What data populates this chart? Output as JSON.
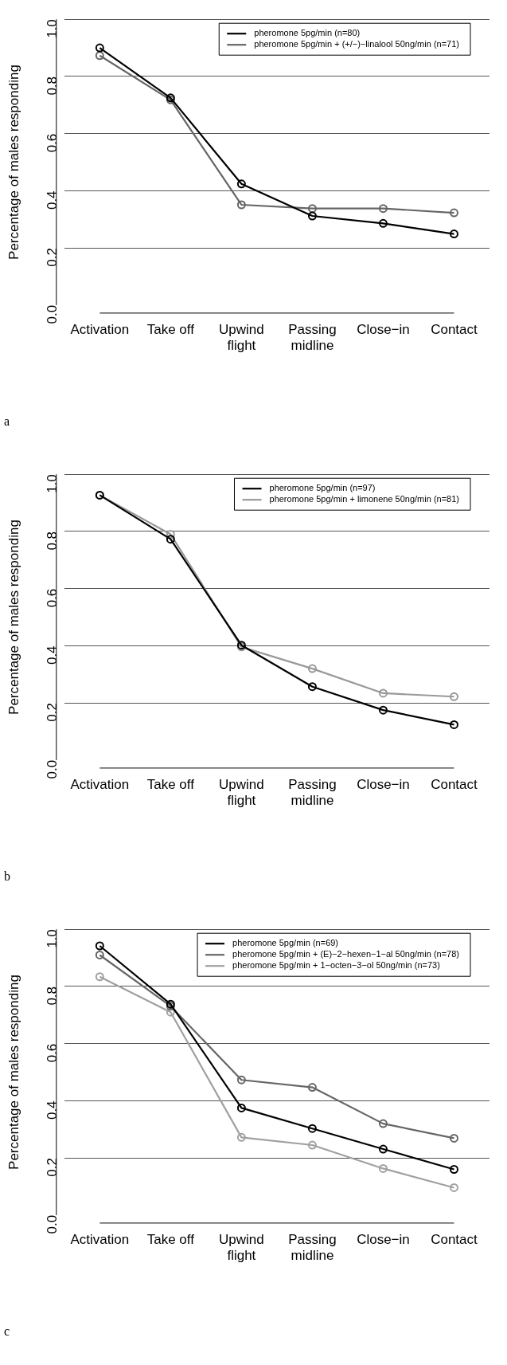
{
  "chart_data": [
    {
      "type": "line",
      "categories": [
        "Activation",
        "Take off",
        "Upwind\nflight",
        "Passing\nmidline",
        "Close−in",
        "Contact"
      ],
      "ylabel": "Percentage of males responding",
      "ylim": [
        0,
        1
      ],
      "yticks": [
        {
          "value": 0,
          "label": "0.0"
        },
        {
          "value": 0.2,
          "label": "0.2"
        },
        {
          "value": 0.4,
          "label": "0.4"
        },
        {
          "value": 0.6,
          "label": "0.6"
        },
        {
          "value": 0.8,
          "label": "0.8"
        },
        {
          "value": 1,
          "label": "1.0"
        }
      ],
      "grid": "y",
      "legend": "top right",
      "marker": "circle",
      "line_style": "solid",
      "annotations": [
        "a"
      ],
      "series": [
        {
          "name": "pheromone 5pg/min (n=80)",
          "color": "#000000",
          "values": [
            0.9,
            0.725,
            0.424,
            0.312,
            0.286,
            0.249
          ]
        },
        {
          "name": "pheromone 5pg/min + (+/−)−linalool 50ng/min (n=71)",
          "color": "#666666",
          "values": [
            0.873,
            0.718,
            0.351,
            0.338,
            0.338,
            0.323
          ]
        }
      ]
    },
    {
      "type": "line",
      "categories": [
        "Activation",
        "Take off",
        "Upwind\nflight",
        "Passing\nmidline",
        "Close−in",
        "Contact"
      ],
      "ylabel": "Percentage of males responding",
      "ylim": [
        0,
        1
      ],
      "yticks": [
        {
          "value": 0,
          "label": "0.0"
        },
        {
          "value": 0.2,
          "label": "0.2"
        },
        {
          "value": 0.4,
          "label": "0.4"
        },
        {
          "value": 0.6,
          "label": "0.6"
        },
        {
          "value": 0.8,
          "label": "0.8"
        },
        {
          "value": 1,
          "label": "1.0"
        }
      ],
      "grid": "y",
      "legend": "top right",
      "marker": "circle",
      "line_style": "solid",
      "annotations": [
        "b"
      ],
      "series": [
        {
          "name": "pheromone 5pg/min (n=97)",
          "color": "#000000",
          "values": [
            0.927,
            0.773,
            0.402,
            0.257,
            0.175,
            0.124
          ]
        },
        {
          "name": "pheromone 5pg/min + limonene 50ng/min (n=81)",
          "color": "#999999",
          "values": [
            0.927,
            0.79,
            0.396,
            0.32,
            0.234,
            0.222
          ]
        }
      ]
    },
    {
      "type": "line",
      "categories": [
        "Activation",
        "Take off",
        "Upwind\nflight",
        "Passing\nmidline",
        "Close−in",
        "Contact"
      ],
      "ylabel": "Percentage of males responding",
      "ylim": [
        0,
        1
      ],
      "yticks": [
        {
          "value": 0,
          "label": "0.0"
        },
        {
          "value": 0.2,
          "label": "0.2"
        },
        {
          "value": 0.4,
          "label": "0.4"
        },
        {
          "value": 0.6,
          "label": "0.6"
        },
        {
          "value": 0.8,
          "label": "0.8"
        },
        {
          "value": 1,
          "label": "1.0"
        }
      ],
      "grid": "y",
      "legend": "top right",
      "marker": "circle",
      "line_style": "solid",
      "annotations": [
        "c"
      ],
      "series": [
        {
          "name": "pheromone 5pg/min (n=69)",
          "color": "#000000",
          "values": [
            0.942,
            0.738,
            0.375,
            0.303,
            0.231,
            0.16
          ]
        },
        {
          "name": "pheromone 5pg/min + (E)−2−hexen−1−al 50ng/min (n=78)",
          "color": "#666666",
          "values": [
            0.91,
            0.731,
            0.473,
            0.447,
            0.32,
            0.269
          ]
        },
        {
          "name": "pheromone 5pg/min + 1−octen−3−ol 50ng/min (n=73)",
          "color": "#a0a0a0",
          "values": [
            0.834,
            0.71,
            0.272,
            0.245,
            0.163,
            0.096
          ]
        }
      ]
    }
  ]
}
